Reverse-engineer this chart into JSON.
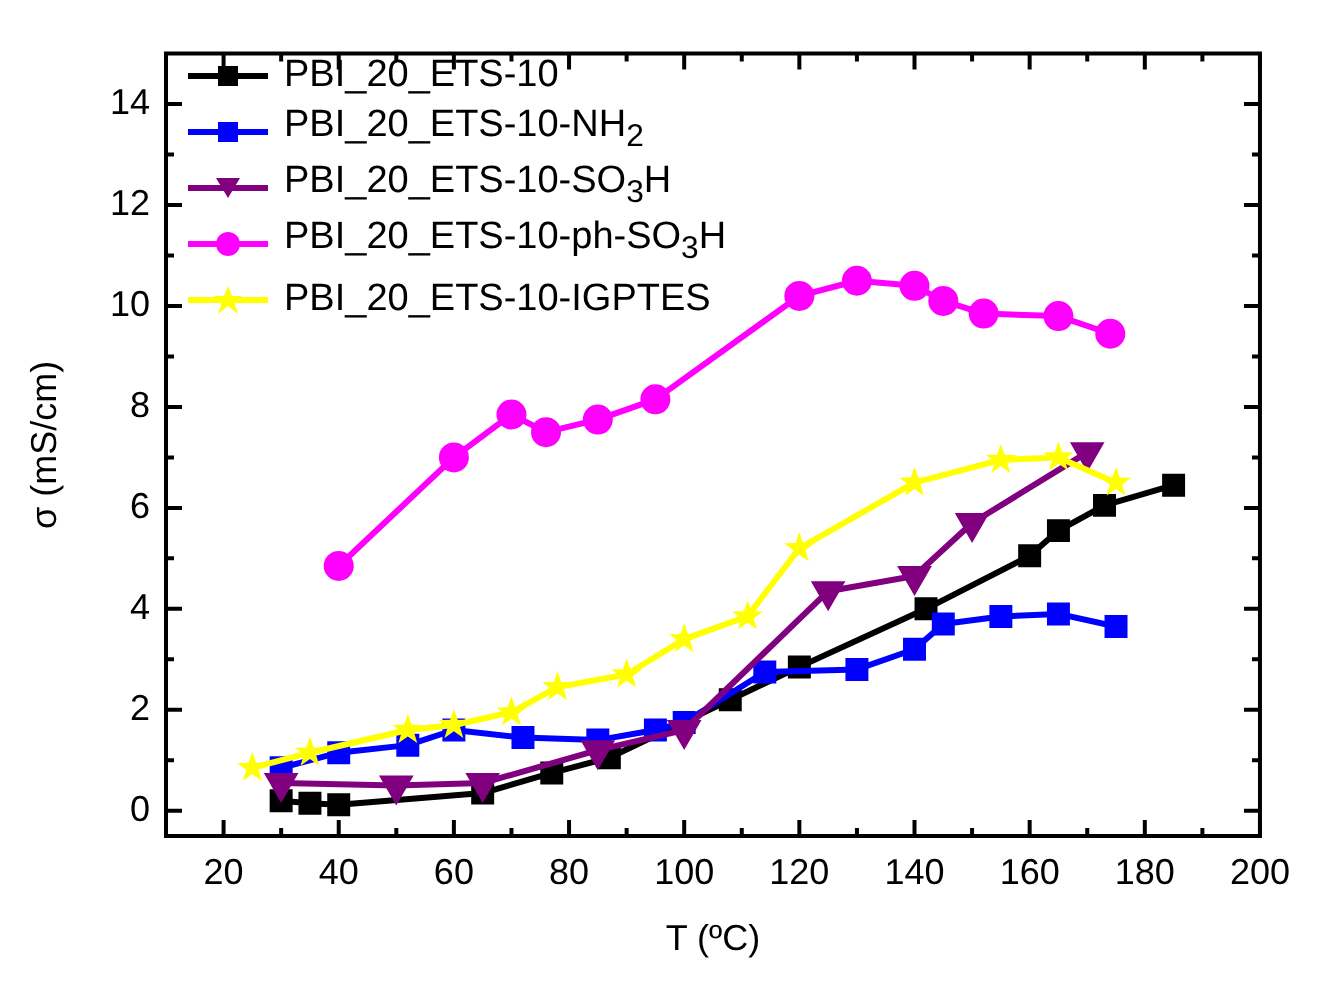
{
  "chart_data": {
    "type": "line",
    "xlabel": "T (ºC)",
    "ylabel": "σ (mS/cm)",
    "xlim": [
      10,
      200
    ],
    "ylim": [
      -0.5,
      15
    ],
    "xticks": [
      20,
      40,
      60,
      80,
      100,
      120,
      140,
      160,
      180,
      200
    ],
    "yticks": [
      0,
      2,
      4,
      6,
      8,
      10,
      12,
      14
    ],
    "grid": false,
    "legend": "top left",
    "line_style": "solid",
    "series": [
      {
        "name": "PBI_20_ETS-10",
        "color": "#000000",
        "marker": "square",
        "x": [
          30,
          35,
          40,
          65,
          77,
          87,
          108,
          120,
          142,
          160,
          165,
          173,
          185
        ],
        "values": [
          0.2,
          0.15,
          0.12,
          0.35,
          0.75,
          1.05,
          2.2,
          2.85,
          4.0,
          5.05,
          5.55,
          6.05,
          6.45
        ]
      },
      {
        "name": "PBI_20_ETS-10-NH$_{2}$",
        "color": "#0000ff",
        "marker": "square",
        "x": [
          30,
          40,
          52,
          60,
          72,
          85,
          95,
          100,
          114,
          130,
          140,
          145,
          155,
          165,
          175
        ],
        "values": [
          0.85,
          1.15,
          1.3,
          1.6,
          1.45,
          1.4,
          1.6,
          1.75,
          2.75,
          2.8,
          3.2,
          3.7,
          3.85,
          3.9,
          3.65
        ]
      },
      {
        "name": "PBI_20_ETS-10-SO$_{3}$H",
        "color": "#800080",
        "marker": "triangle",
        "x": [
          30,
          50,
          65,
          85,
          100,
          125,
          140,
          150,
          170
        ],
        "values": [
          0.55,
          0.5,
          0.55,
          1.2,
          1.6,
          4.35,
          4.65,
          5.7,
          7.1
        ]
      },
      {
        "name": "PBI_20_ETS-10-ph-SO$_{3}$H",
        "color": "#ff00ff",
        "marker": "circle",
        "x": [
          40,
          60,
          70,
          76,
          85,
          95,
          120,
          130,
          140,
          145,
          152,
          165,
          174
        ],
        "values": [
          4.85,
          7.0,
          7.85,
          7.5,
          7.75,
          8.15,
          10.2,
          10.5,
          10.4,
          10.1,
          9.85,
          9.8,
          9.45
        ]
      },
      {
        "name": "PBI_20_ETS-10-IGPTES",
        "color": "#ffff00",
        "marker": "star",
        "x": [
          25,
          35,
          52,
          60,
          70,
          78,
          90,
          100,
          111,
          120,
          140,
          155,
          165,
          175
        ],
        "values": [
          0.85,
          1.15,
          1.6,
          1.7,
          1.95,
          2.45,
          2.7,
          3.4,
          3.85,
          5.2,
          6.5,
          6.95,
          7.0,
          6.5
        ]
      }
    ]
  }
}
